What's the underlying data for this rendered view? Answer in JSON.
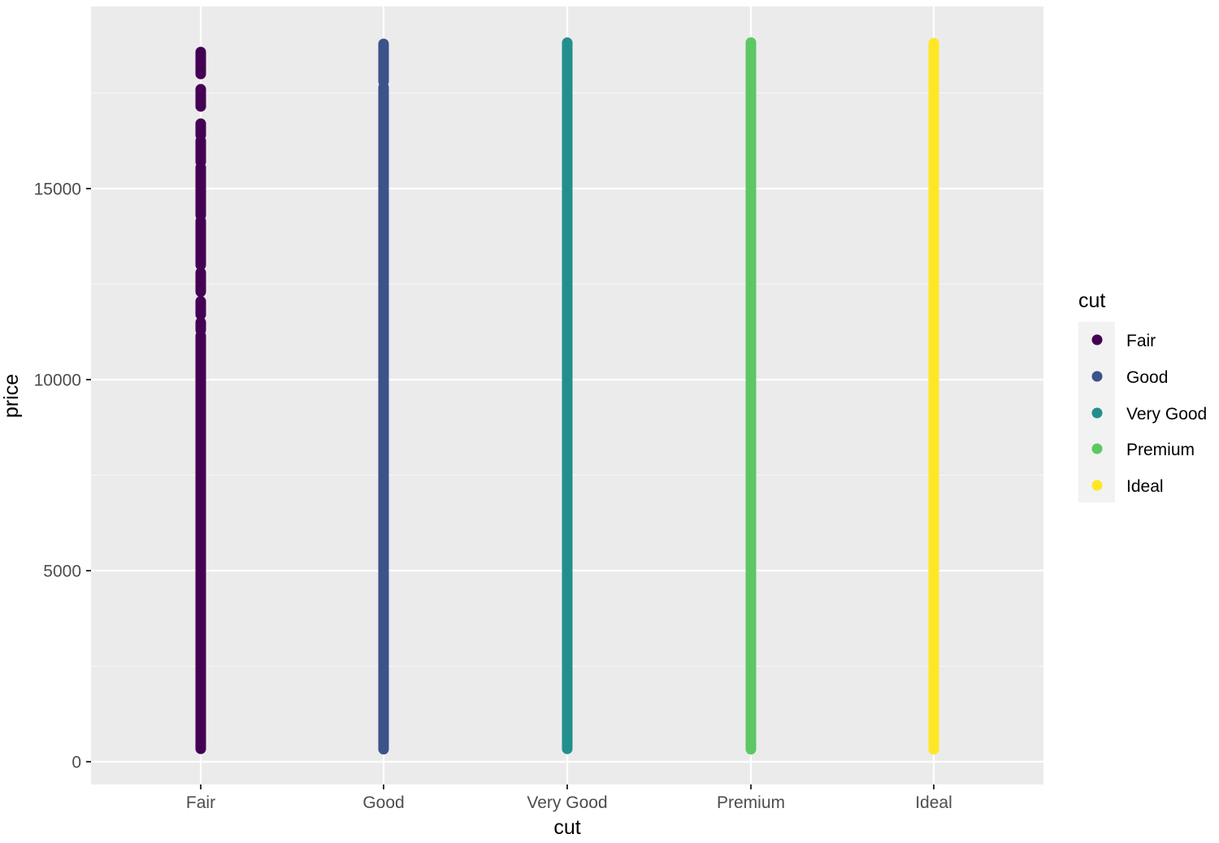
{
  "chart_data": {
    "type": "scatter",
    "title": "",
    "xlabel": "cut",
    "ylabel": "price",
    "categories": [
      "Fair",
      "Good",
      "Very Good",
      "Premium",
      "Ideal"
    ],
    "ylim": [
      -1200,
      19000
    ],
    "y_ticks": [
      0,
      5000,
      10000,
      15000
    ],
    "y_tick_labels": [
      "0",
      "5000",
      "10000",
      "15000"
    ],
    "grid": true,
    "legend_position": "right",
    "legend_title": "cut",
    "series": [
      {
        "name": "Fair",
        "color": "#440154",
        "min": 337,
        "max": 18574,
        "gaps": [
          [
            18000,
            17600
          ],
          [
            17150,
            16700
          ],
          [
            16400,
            16250
          ],
          [
            15700,
            15550
          ],
          [
            14300,
            14150
          ],
          [
            13000,
            12800
          ],
          [
            12300,
            12050
          ],
          [
            11700,
            11500
          ],
          [
            11300,
            11150
          ]
        ]
      },
      {
        "name": "Good",
        "color": "#3B528B",
        "min": 327,
        "max": 18788,
        "gaps": [
          [
            17800,
            17650
          ]
        ]
      },
      {
        "name": "Very Good",
        "color": "#21908C",
        "min": 336,
        "max": 18818,
        "gaps": []
      },
      {
        "name": "Premium",
        "color": "#5DC863",
        "min": 326,
        "max": 18823,
        "gaps": []
      },
      {
        "name": "Ideal",
        "color": "#FDE725",
        "min": 326,
        "max": 18806,
        "gaps": []
      }
    ]
  },
  "axes": {
    "x_title": "cut",
    "y_title": "price",
    "y_ticks": [
      "0",
      "5000",
      "10000",
      "15000"
    ],
    "x_ticks": [
      "Fair",
      "Good",
      "Very Good",
      "Premium",
      "Ideal"
    ]
  },
  "legend": {
    "title": "cut",
    "items": [
      {
        "label": "Fair",
        "color": "#440154"
      },
      {
        "label": "Good",
        "color": "#3B528B"
      },
      {
        "label": "Very Good",
        "color": "#21908C"
      },
      {
        "label": "Premium",
        "color": "#5DC863"
      },
      {
        "label": "Ideal",
        "color": "#FDE725"
      }
    ]
  },
  "theme": {
    "panel_bg": "#EBEBEB",
    "grid_major": "#FFFFFF",
    "grid_minor": "#F5F5F5",
    "tick_color": "#333333",
    "legend_key_bg": "#F2F2F2"
  }
}
